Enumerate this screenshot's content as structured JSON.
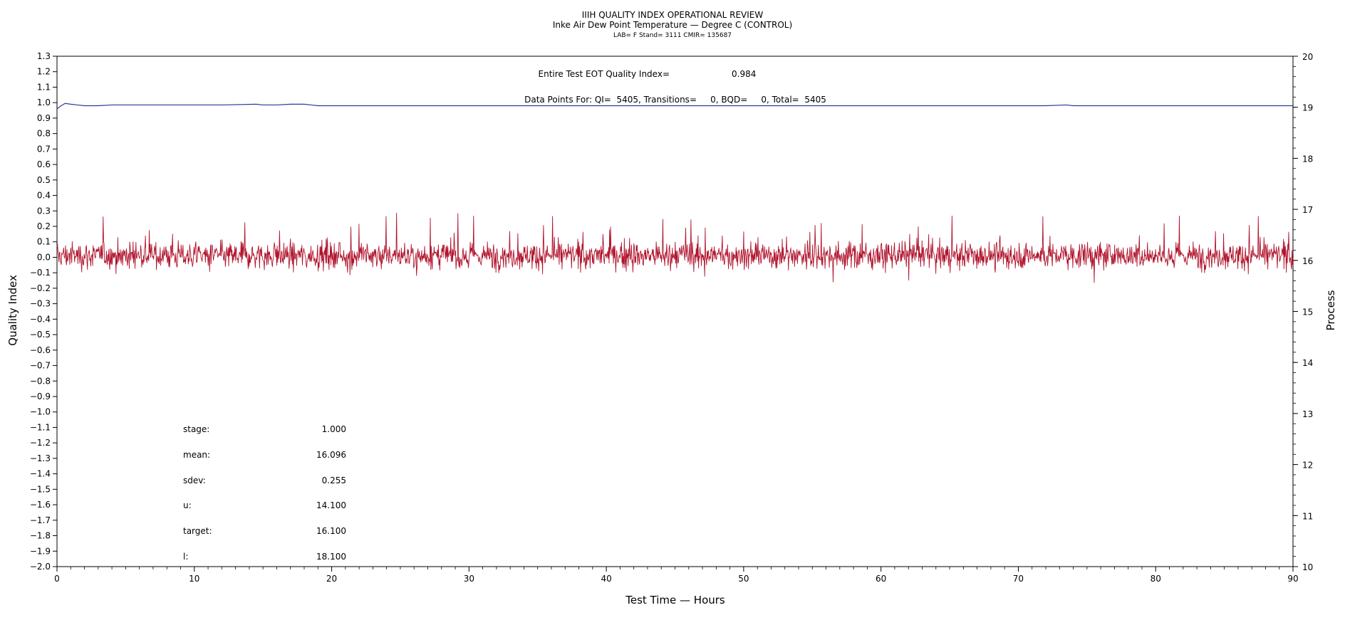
{
  "chart_data": {
    "type": "line",
    "title": "IIIH QUALITY INDEX OPERATIONAL REVIEW",
    "subtitle": "Inke Air Dew Point Temperature — Degree C (CONTROL)",
    "subtitle2": "LAB= F Stand= 3111 CMIR= 135687",
    "xlabel": "Test Time — Hours",
    "ylabel_left": "Quality Index",
    "ylabel_right": "Process",
    "xlim": [
      0,
      90
    ],
    "ylim_left": [
      -2.0,
      1.3
    ],
    "ylim_right": [
      10,
      20
    ],
    "x_ticks": [
      "0",
      "10",
      "20",
      "30",
      "40",
      "50",
      "60",
      "70",
      "80",
      "90"
    ],
    "y_left_ticks": [
      "1.3",
      "1.2",
      "1.1",
      "1.0",
      "0.9",
      "0.8",
      "0.7",
      "0.6",
      "0.5",
      "0.4",
      "0.3",
      "0.2",
      "0.1",
      "0.0",
      "-0.1",
      "-0.2",
      "-0.3",
      "-0.4",
      "-0.5",
      "-0.6",
      "-0.7",
      "-0.8",
      "-0.9",
      "-1.0",
      "-1.1",
      "-1.2",
      "-1.3",
      "-1.4",
      "-1.5",
      "-1.6",
      "-1.7",
      "-1.8",
      "-1.9",
      "-2.0"
    ],
    "y_right_ticks": [
      "20",
      "19",
      "18",
      "17",
      "16",
      "15",
      "14",
      "13",
      "12",
      "11",
      "10"
    ],
    "annotations": {
      "eot_label": "Entire Test EOT Quality Index=",
      "eot_value": "0.984",
      "points_line": "Data Points For: QI=  5405, Transitions=     0, BQD=     0, Total=  5405"
    },
    "stats": [
      {
        "label": "stage:",
        "value": "1.000"
      },
      {
        "label": "mean:",
        "value": "16.096"
      },
      {
        "label": "sdev:",
        "value": "0.255"
      },
      {
        "label": "u:",
        "value": "14.100"
      },
      {
        "label": "target:",
        "value": "16.100"
      },
      {
        "label": "l:",
        "value": "18.100"
      }
    ],
    "series": [
      {
        "axis": "left",
        "color": "#2b3a9a",
        "x": [
          0,
          0.3,
          0.6,
          1.0,
          1.5,
          2.0,
          3.0,
          4.0,
          5.0,
          8.0,
          12.0,
          14.5,
          15.0,
          16.0,
          17.0,
          18.0,
          18.5,
          19.0,
          25.0,
          35.0,
          45.0,
          55.0,
          65.0,
          72.0,
          73.5,
          74.0,
          80.0,
          90.0
        ],
        "values": [
          0.96,
          0.98,
          0.995,
          0.99,
          0.985,
          0.98,
          0.98,
          0.985,
          0.985,
          0.985,
          0.985,
          0.99,
          0.985,
          0.985,
          0.99,
          0.99,
          0.985,
          0.98,
          0.98,
          0.98,
          0.98,
          0.98,
          0.98,
          0.98,
          0.985,
          0.98,
          0.98,
          0.98
        ]
      },
      {
        "axis": "right",
        "color": "#b0132c",
        "generated_from": "noisy signal ~16.1 ± 0.25, range approx 15.3–17.0",
        "x_range": [
          0,
          90
        ],
        "mean": 16.096,
        "sdev": 0.255,
        "points": 2600
      }
    ]
  }
}
